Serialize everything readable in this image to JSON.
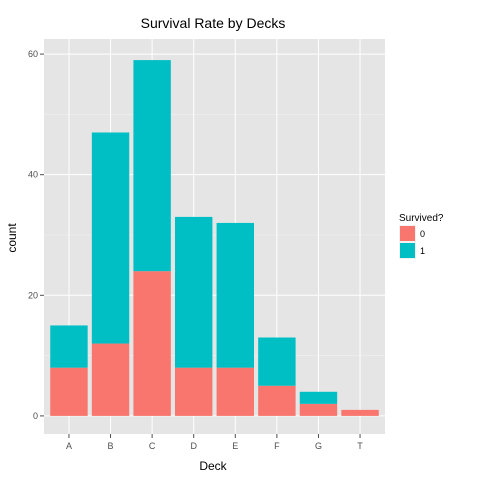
{
  "chart_data": {
    "type": "bar",
    "stacked": true,
    "title": "Survival Rate by Decks",
    "xlabel": "Deck",
    "ylabel": "count",
    "categories": [
      "A",
      "B",
      "C",
      "D",
      "E",
      "F",
      "G",
      "T"
    ],
    "series": [
      {
        "name": "0",
        "color": "#F8766D",
        "values": [
          8,
          12,
          24,
          8,
          8,
          5,
          2,
          1
        ]
      },
      {
        "name": "1",
        "color": "#00BFC4",
        "values": [
          7,
          35,
          35,
          25,
          24,
          8,
          2,
          0
        ]
      }
    ],
    "ylim": [
      -3,
      62.5
    ],
    "yticks": [
      0,
      20,
      40,
      60
    ],
    "grid": true,
    "panel_background": "#E5E5E5",
    "legend": {
      "title": "Survived?",
      "placement": "right"
    }
  }
}
